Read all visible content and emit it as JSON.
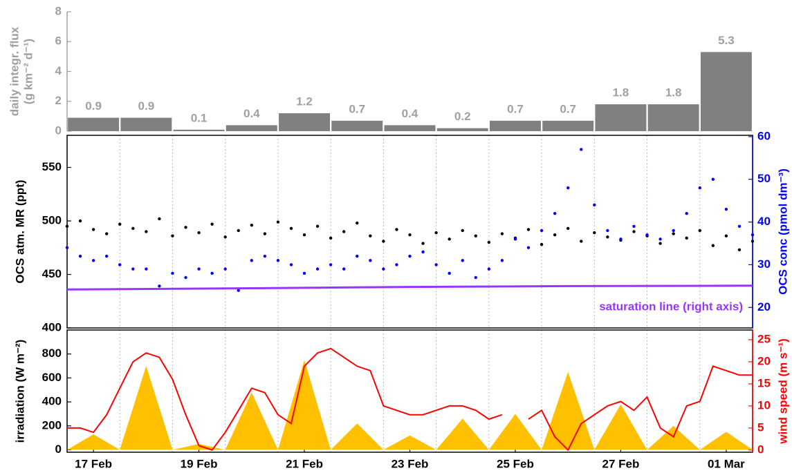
{
  "chart_data": [
    {
      "type": "bar",
      "ylabel": [
        "daily integr. flux",
        "(g km⁻² d⁻¹)"
      ],
      "x": [
        17,
        18,
        19,
        20,
        21,
        22,
        23,
        24,
        25,
        26,
        27,
        28,
        29
      ],
      "values": [
        0.9,
        0.9,
        0.1,
        0.4,
        1.2,
        0.7,
        0.4,
        0.2,
        0.7,
        0.7,
        1.8,
        1.8,
        5.3
      ],
      "color": "#808080",
      "axis_color": "#a0a0a0",
      "xlim": [
        16.5,
        29.5
      ],
      "ylim": [
        0,
        8
      ],
      "yticks": [
        0,
        2,
        4,
        6,
        8
      ]
    },
    {
      "type": "scatter",
      "ylabel": "OCS atm. MR (ppt)",
      "y2label": "OCS conc (pmol dm⁻³)",
      "annotation": "saturation line (right axis)",
      "x": [
        16.5,
        16.75,
        17,
        17.25,
        17.5,
        17.75,
        18,
        18.25,
        18.5,
        18.75,
        19,
        19.25,
        19.5,
        19.75,
        20,
        20.25,
        20.5,
        20.75,
        21,
        21.25,
        21.5,
        21.75,
        22,
        22.25,
        22.5,
        22.75,
        23,
        23.25,
        23.5,
        23.75,
        24,
        24.25,
        24.5,
        24.75,
        25,
        25.25,
        25.5,
        25.75,
        26,
        26.25,
        26.5,
        26.75,
        27,
        27.25,
        27.5,
        27.75,
        28,
        28.25,
        28.5,
        28.75,
        29,
        29.25,
        29.5
      ],
      "xlim": [
        16.5,
        29.5
      ],
      "ylim": [
        400,
        580
      ],
      "yticks": [
        400,
        450,
        500,
        550
      ],
      "y2lim": [
        15.2,
        60.3
      ],
      "y2ticks": [
        20,
        30,
        40,
        50,
        60
      ],
      "series": [
        {
          "color": "#000000",
          "style": "dots",
          "values": [
            495,
            500,
            492,
            488,
            497,
            493,
            490,
            502,
            486,
            494,
            489,
            497,
            485,
            491,
            496,
            488,
            499,
            493,
            487,
            495,
            484,
            490,
            498,
            486,
            481,
            492,
            487,
            479,
            489,
            483,
            491,
            486,
            480,
            488,
            484,
            492,
            478,
            487,
            493,
            481,
            489,
            485,
            482,
            490,
            486,
            479,
            488,
            484,
            491,
            477,
            486,
            473,
            481
          ]
        },
        {
          "color": "#0000ff",
          "style": "dots",
          "axis": "y2",
          "values": [
            34,
            32,
            31,
            32,
            30,
            29,
            29,
            25,
            28,
            27,
            29,
            28,
            29,
            24,
            31,
            32,
            31,
            30,
            28,
            29,
            30,
            29,
            32,
            31,
            29,
            30,
            32,
            33,
            30,
            28,
            31,
            27,
            29,
            31,
            36,
            34,
            38,
            42,
            48,
            57,
            44,
            38,
            36,
            39,
            37,
            36,
            38,
            42,
            48,
            50,
            43,
            39,
            37
          ]
        },
        {
          "color": "#9933ff",
          "style": "line",
          "axis": "y2",
          "x": [
            16.5,
            20,
            23,
            26,
            29.5
          ],
          "values": [
            24.2,
            24.5,
            24.8,
            25.0,
            25.1
          ]
        }
      ]
    },
    {
      "type": "line",
      "ylabel": "irradiation (W m⁻²)",
      "y2label": "wind speed (m s⁻¹)",
      "x": [
        16.5,
        16.75,
        17,
        17.25,
        17.5,
        17.75,
        18,
        18.25,
        18.5,
        18.75,
        19,
        19.25,
        19.5,
        19.75,
        20,
        20.25,
        20.5,
        20.75,
        21,
        21.25,
        21.5,
        21.75,
        22,
        22.25,
        22.5,
        22.75,
        23,
        23.25,
        23.5,
        23.75,
        24,
        24.25,
        24.5,
        24.75,
        25,
        25.25,
        25.5,
        25.75,
        26,
        26.25,
        26.5,
        26.75,
        27,
        27.25,
        27.5,
        27.75,
        28,
        28.25,
        28.5,
        28.75,
        29,
        29.25,
        29.5
      ],
      "xlim": [
        16.5,
        29.5
      ],
      "xticks": [
        {
          "value": 17,
          "label": "17 Feb"
        },
        {
          "value": 19,
          "label": "19 Feb"
        },
        {
          "value": 21,
          "label": "21 Feb"
        },
        {
          "value": 23,
          "label": "23 Feb"
        },
        {
          "value": 25,
          "label": "25 Feb"
        },
        {
          "value": 27,
          "label": "27 Feb"
        },
        {
          "value": 29,
          "label": "01 Mar"
        }
      ],
      "ylim": [
        -20,
        1000
      ],
      "yticks": [
        0,
        200,
        400,
        600,
        800
      ],
      "y2lim": [
        -0.5,
        27.2
      ],
      "y2ticks": [
        0,
        5,
        10,
        15,
        20,
        25
      ],
      "series": [
        {
          "color": "#ffc000",
          "style": "area",
          "values": [
            0,
            65,
            130,
            65,
            0,
            350,
            700,
            350,
            0,
            25,
            50,
            25,
            0,
            240,
            480,
            240,
            0,
            375,
            750,
            375,
            0,
            110,
            220,
            110,
            0,
            60,
            120,
            60,
            0,
            130,
            260,
            130,
            0,
            150,
            300,
            150,
            0,
            325,
            650,
            325,
            0,
            190,
            380,
            190,
            0,
            100,
            200,
            100,
            0,
            75,
            150,
            75,
            0
          ]
        },
        {
          "color": "#ff0000",
          "style": "line",
          "axis": "y2",
          "values": [
            5,
            5,
            4,
            8,
            14,
            20,
            22,
            21,
            16,
            8,
            1,
            0,
            4,
            9,
            14,
            13,
            8,
            6,
            19,
            22,
            23,
            21,
            19,
            18,
            10,
            9,
            8,
            8,
            9,
            10,
            10,
            9,
            7,
            8,
            null,
            7,
            9,
            3,
            0,
            6,
            8,
            10,
            11,
            9,
            12,
            5,
            3,
            10,
            11,
            19,
            18,
            17,
            17
          ]
        }
      ]
    }
  ]
}
